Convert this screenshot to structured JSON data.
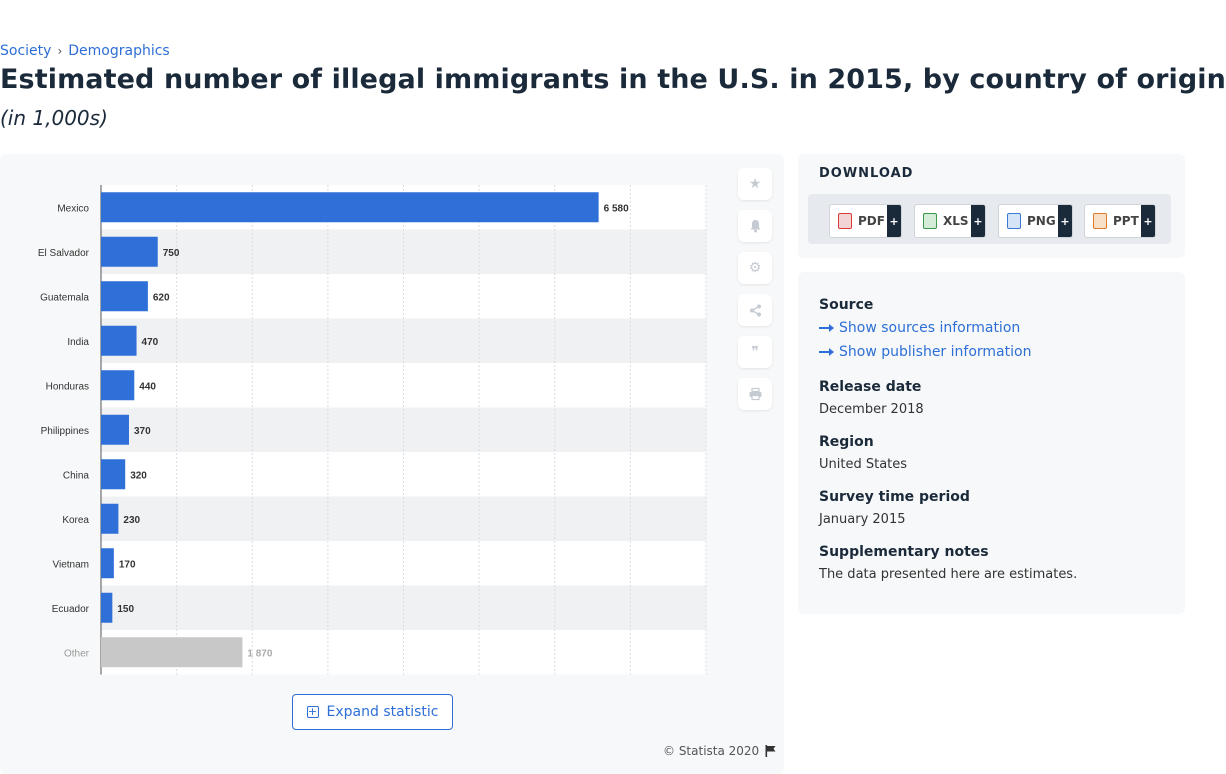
{
  "breadcrumb": {
    "items": [
      "Society",
      "Demographics"
    ]
  },
  "title": "Estimated number of illegal immigrants in the U.S. in 2015, by country of origin",
  "subtitle": "(in 1,000s)",
  "toolbar_icons": [
    "star-icon",
    "bell-icon",
    "gear-icon",
    "share-icon",
    "quote-icon",
    "print-icon"
  ],
  "expand_label": "Expand statistic",
  "copyright": "© Statista 2020",
  "download": {
    "title": "DOWNLOAD",
    "formats": [
      {
        "label": "PDF",
        "color": "#d93b3b"
      },
      {
        "label": "XLS",
        "color": "#3a9a4a"
      },
      {
        "label": "PNG",
        "color": "#3a7bd5"
      },
      {
        "label": "PPT",
        "color": "#e07b2a"
      }
    ],
    "plus": "+"
  },
  "info": {
    "source_label": "Source",
    "show_sources": "Show sources information",
    "show_publisher": "Show publisher information",
    "release_label": "Release date",
    "release_value": "December 2018",
    "region_label": "Region",
    "region_value": "United States",
    "survey_label": "Survey time period",
    "survey_value": "January 2015",
    "notes_label": "Supplementary notes",
    "notes_value": "The data presented here are estimates."
  },
  "chart_data": {
    "type": "bar",
    "orientation": "horizontal",
    "categories": [
      "Mexico",
      "El Salvador",
      "Guatemala",
      "India",
      "Honduras",
      "Philippines",
      "China",
      "Korea",
      "Vietnam",
      "Ecuador",
      "Other"
    ],
    "values": [
      6580,
      750,
      620,
      470,
      440,
      370,
      320,
      230,
      170,
      150,
      1870
    ],
    "value_labels": [
      "6 580",
      "750",
      "620",
      "470",
      "440",
      "370",
      "320",
      "230",
      "170",
      "150",
      "1 870"
    ],
    "xlim": [
      0,
      8000
    ],
    "grid": true,
    "colors": {
      "bar": "#2f6fd8",
      "other": "#c8c8c8"
    }
  }
}
